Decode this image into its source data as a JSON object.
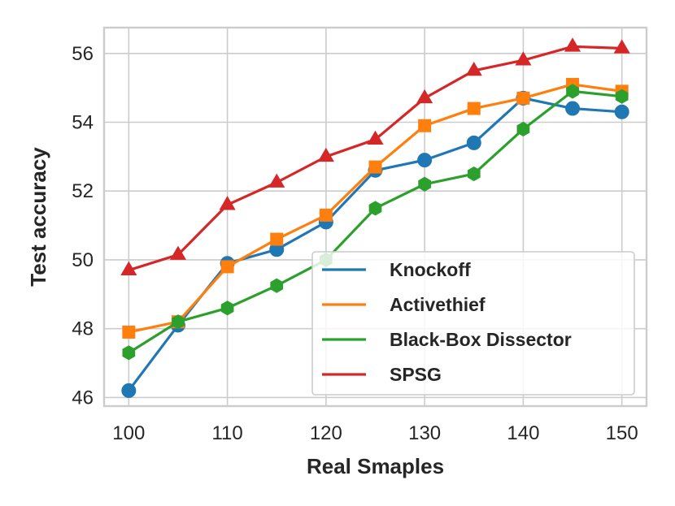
{
  "chart_data": {
    "type": "line",
    "title": "",
    "xlabel": "Real Smaples",
    "ylabel": "Test accuracy",
    "x": [
      100,
      105,
      110,
      115,
      120,
      125,
      130,
      135,
      140,
      145,
      150
    ],
    "xticks": [
      "100",
      "110",
      "120",
      "130",
      "140",
      "150"
    ],
    "xtick_values": [
      100,
      110,
      120,
      130,
      140,
      150
    ],
    "yticks": [
      "46",
      "48",
      "50",
      "52",
      "54",
      "56"
    ],
    "ytick_values": [
      46,
      48,
      50,
      52,
      54,
      56
    ],
    "xlim": [
      97.5,
      152.5
    ],
    "ylim": [
      45.75,
      56.75
    ],
    "grid": true,
    "legend_position": "lower-right",
    "series": [
      {
        "name": "Knockoff",
        "color": "#1f77b4",
        "marker": "circle",
        "values": [
          46.2,
          48.1,
          49.9,
          50.3,
          51.1,
          52.6,
          52.9,
          53.4,
          54.7,
          54.4,
          54.3
        ]
      },
      {
        "name": "Activethief",
        "color": "#ff7f0e",
        "marker": "square",
        "values": [
          47.9,
          48.2,
          49.8,
          50.6,
          51.3,
          52.7,
          53.9,
          54.4,
          54.7,
          55.1,
          54.9
        ]
      },
      {
        "name": "Black-Box Dissector",
        "color": "#2ca02c",
        "marker": "hexagon",
        "values": [
          47.3,
          48.2,
          48.6,
          49.25,
          50.0,
          51.5,
          52.2,
          52.5,
          53.8,
          54.9,
          54.75
        ]
      },
      {
        "name": "SPSG",
        "color": "#d62728",
        "marker": "triangle",
        "values": [
          49.7,
          50.15,
          51.6,
          52.25,
          53.0,
          53.5,
          54.7,
          55.5,
          55.8,
          56.2,
          56.15
        ]
      }
    ]
  }
}
